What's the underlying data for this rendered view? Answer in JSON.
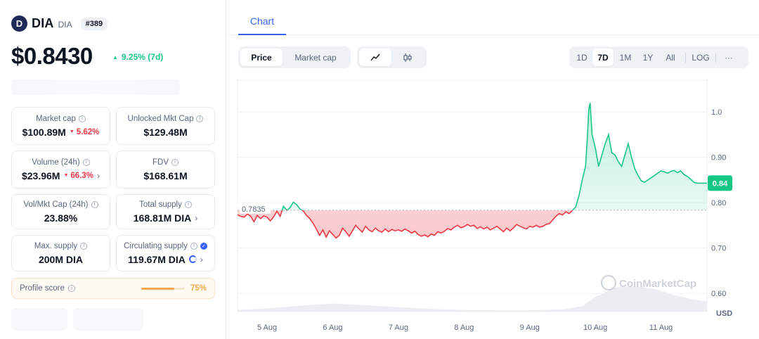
{
  "coin": {
    "name": "DIA",
    "symbol": "DIA",
    "rank": "#389",
    "logo_letter": "D",
    "price": "$0.8430",
    "change": "9.25% (7d)",
    "change_color": "#16c784"
  },
  "stats": {
    "market_cap": {
      "label": "Market cap",
      "value": "$100.89M",
      "change": "5.62%"
    },
    "unlocked_mkt_cap": {
      "label": "Unlocked Mkt Cap",
      "value": "$129.48M"
    },
    "volume": {
      "label": "Volume (24h)",
      "value": "$23.96M",
      "change": "66.3%"
    },
    "fdv": {
      "label": "FDV",
      "value": "$168.61M"
    },
    "vol_mkt_cap": {
      "label": "Vol/Mkt Cap (24h)",
      "value": "23.88%"
    },
    "total_supply": {
      "label": "Total supply",
      "value": "168.81M DIA"
    },
    "max_supply": {
      "label": "Max. supply",
      "value": "200M DIA"
    },
    "circulating_supply": {
      "label": "Circulating supply",
      "value": "119.67M DIA"
    }
  },
  "profile": {
    "label": "Profile score",
    "value": "75%",
    "level": 0.75
  },
  "tabs": {
    "chart": "Chart"
  },
  "toolbar": {
    "price": "Price",
    "market_cap": "Market cap",
    "ranges": [
      "1D",
      "7D",
      "1M",
      "1Y",
      "All",
      "LOG"
    ],
    "active_range": "7D",
    "more": "···"
  },
  "colors": {
    "up": "#16c784",
    "down": "#ea3943",
    "accent": "#3861fb"
  },
  "chart_data": {
    "type": "area",
    "baseline": 0.7835,
    "baseline_label": "0.7835",
    "current_label": "0.84",
    "currency": "USD",
    "ylim": [
      0.56,
      1.07
    ],
    "yticks": [
      "1.0",
      "0.90",
      "0.80",
      "0.70",
      "0.60"
    ],
    "ytick_values": [
      1.0,
      0.9,
      0.8,
      0.7,
      0.6
    ],
    "xlabels": [
      "5 Aug",
      "6 Aug",
      "7 Aug",
      "8 Aug",
      "9 Aug",
      "10 Aug",
      "11 Aug"
    ],
    "x_range": [
      4.55,
      11.7
    ],
    "watermark": "CoinMarketCap",
    "series": [
      {
        "values": [
          [
            4.55,
            0.773
          ],
          [
            4.6,
            0.77
          ],
          [
            4.65,
            0.768
          ],
          [
            4.7,
            0.775
          ],
          [
            4.75,
            0.77
          ],
          [
            4.8,
            0.758
          ],
          [
            4.85,
            0.772
          ],
          [
            4.9,
            0.765
          ],
          [
            4.95,
            0.771
          ],
          [
            5.0,
            0.768
          ],
          [
            5.05,
            0.76
          ],
          [
            5.1,
            0.769
          ],
          [
            5.15,
            0.781
          ],
          [
            5.2,
            0.77
          ],
          [
            5.25,
            0.792
          ],
          [
            5.3,
            0.783
          ],
          [
            5.35,
            0.789
          ],
          [
            5.4,
            0.801
          ],
          [
            5.45,
            0.796
          ],
          [
            5.5,
            0.786
          ],
          [
            5.55,
            0.782
          ],
          [
            5.6,
            0.772
          ],
          [
            5.65,
            0.765
          ],
          [
            5.7,
            0.755
          ],
          [
            5.75,
            0.742
          ],
          [
            5.8,
            0.728
          ],
          [
            5.85,
            0.74
          ],
          [
            5.9,
            0.724
          ],
          [
            5.95,
            0.738
          ],
          [
            6.0,
            0.73
          ],
          [
            6.05,
            0.722
          ],
          [
            6.1,
            0.728
          ],
          [
            6.15,
            0.744
          ],
          [
            6.2,
            0.736
          ],
          [
            6.25,
            0.726
          ],
          [
            6.3,
            0.738
          ],
          [
            6.35,
            0.75
          ],
          [
            6.4,
            0.742
          ],
          [
            6.45,
            0.735
          ],
          [
            6.5,
            0.748
          ],
          [
            6.55,
            0.74
          ],
          [
            6.6,
            0.736
          ],
          [
            6.65,
            0.744
          ],
          [
            6.7,
            0.738
          ],
          [
            6.75,
            0.735
          ],
          [
            6.8,
            0.742
          ],
          [
            6.85,
            0.736
          ],
          [
            6.9,
            0.741
          ],
          [
            6.95,
            0.738
          ],
          [
            7.0,
            0.74
          ],
          [
            7.05,
            0.737
          ],
          [
            7.1,
            0.742
          ],
          [
            7.15,
            0.738
          ],
          [
            7.2,
            0.733
          ],
          [
            7.25,
            0.737
          ],
          [
            7.3,
            0.73
          ],
          [
            7.35,
            0.726
          ],
          [
            7.4,
            0.729
          ],
          [
            7.45,
            0.725
          ],
          [
            7.5,
            0.731
          ],
          [
            7.55,
            0.728
          ],
          [
            7.6,
            0.736
          ],
          [
            7.65,
            0.733
          ],
          [
            7.7,
            0.737
          ],
          [
            7.75,
            0.743
          ],
          [
            7.8,
            0.74
          ],
          [
            7.85,
            0.746
          ],
          [
            7.9,
            0.75
          ],
          [
            7.95,
            0.745
          ],
          [
            8.0,
            0.747
          ],
          [
            8.05,
            0.752
          ],
          [
            8.1,
            0.748
          ],
          [
            8.15,
            0.75
          ],
          [
            8.2,
            0.743
          ],
          [
            8.25,
            0.747
          ],
          [
            8.3,
            0.742
          ],
          [
            8.35,
            0.746
          ],
          [
            8.4,
            0.74
          ],
          [
            8.45,
            0.744
          ],
          [
            8.5,
            0.748
          ],
          [
            8.55,
            0.742
          ],
          [
            8.6,
            0.736
          ],
          [
            8.65,
            0.744
          ],
          [
            8.7,
            0.738
          ],
          [
            8.75,
            0.744
          ],
          [
            8.8,
            0.752
          ],
          [
            8.85,
            0.748
          ],
          [
            8.9,
            0.745
          ],
          [
            8.95,
            0.742
          ],
          [
            9.0,
            0.748
          ],
          [
            9.05,
            0.746
          ],
          [
            9.1,
            0.75
          ],
          [
            9.15,
            0.746
          ],
          [
            9.2,
            0.748
          ],
          [
            9.25,
            0.752
          ],
          [
            9.3,
            0.754
          ],
          [
            9.35,
            0.762
          ],
          [
            9.4,
            0.77
          ],
          [
            9.45,
            0.776
          ],
          [
            9.5,
            0.773
          ],
          [
            9.55,
            0.78
          ],
          [
            9.6,
            0.776
          ],
          [
            9.65,
            0.783
          ],
          [
            9.7,
            0.79
          ],
          [
            9.75,
            0.815
          ],
          [
            9.8,
            0.85
          ],
          [
            9.85,
            0.88
          ],
          [
            9.88,
            0.95
          ],
          [
            9.9,
            1.005
          ],
          [
            9.92,
            1.02
          ],
          [
            9.95,
            0.95
          ],
          [
            10.0,
            0.92
          ],
          [
            10.05,
            0.88
          ],
          [
            10.1,
            0.905
          ],
          [
            10.15,
            0.93
          ],
          [
            10.2,
            0.95
          ],
          [
            10.25,
            0.91
          ],
          [
            10.3,
            0.905
          ],
          [
            10.35,
            0.89
          ],
          [
            10.4,
            0.88
          ],
          [
            10.45,
            0.905
          ],
          [
            10.5,
            0.93
          ],
          [
            10.55,
            0.9
          ],
          [
            10.6,
            0.875
          ],
          [
            10.65,
            0.86
          ],
          [
            10.7,
            0.848
          ],
          [
            10.75,
            0.845
          ],
          [
            10.8,
            0.85
          ],
          [
            10.85,
            0.855
          ],
          [
            10.9,
            0.86
          ],
          [
            10.95,
            0.865
          ],
          [
            11.0,
            0.87
          ],
          [
            11.05,
            0.868
          ],
          [
            11.1,
            0.865
          ],
          [
            11.15,
            0.869
          ],
          [
            11.2,
            0.871
          ],
          [
            11.25,
            0.866
          ],
          [
            11.3,
            0.87
          ],
          [
            11.35,
            0.862
          ],
          [
            11.4,
            0.858
          ],
          [
            11.45,
            0.852
          ],
          [
            11.5,
            0.845
          ],
          [
            11.55,
            0.843
          ],
          [
            11.6,
            0.843
          ],
          [
            11.65,
            0.843
          ],
          [
            11.7,
            0.843
          ]
        ]
      }
    ],
    "volume_series": [
      [
        4.55,
        0.06
      ],
      [
        5.0,
        0.12
      ],
      [
        5.5,
        0.22
      ],
      [
        6.0,
        0.3
      ],
      [
        6.5,
        0.24
      ],
      [
        7.0,
        0.16
      ],
      [
        7.5,
        0.1
      ],
      [
        8.0,
        0.06
      ],
      [
        8.5,
        0.05
      ],
      [
        9.0,
        0.05
      ],
      [
        9.5,
        0.08
      ],
      [
        9.8,
        0.2
      ],
      [
        10.0,
        0.55
      ],
      [
        10.3,
        0.9
      ],
      [
        10.6,
        0.95
      ],
      [
        10.9,
        0.85
      ],
      [
        11.2,
        0.62
      ],
      [
        11.5,
        0.45
      ],
      [
        11.7,
        0.38
      ]
    ]
  }
}
